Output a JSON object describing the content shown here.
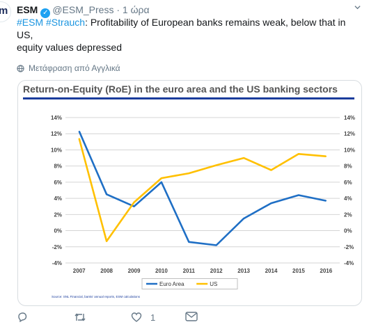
{
  "tweet": {
    "author_name": "ESM",
    "handle": "@ESM_Press",
    "separator": "·",
    "time": "1 ώρα",
    "hashtag1": "#ESM",
    "hashtag2": "#Strauch",
    "text_part1": ": Profitability of European banks remains weak, below that in US,",
    "text_part2": "equity values depressed",
    "translate_label": "Μετάφραση από Αγγλικά",
    "avatar_text": "m",
    "verified_mark": "✓"
  },
  "actions": {
    "reply_count": "",
    "retweet_count": "",
    "like_count": "1"
  },
  "chart_data": {
    "type": "line",
    "title": "Return-on-Equity (RoE) in the euro area and the US banking sectors",
    "x": [
      "2007",
      "2008",
      "2009",
      "2010",
      "2011",
      "2012",
      "2013",
      "2014",
      "2015",
      "2016"
    ],
    "series": [
      {
        "name": "Euro Area",
        "color": "#1f6fc5",
        "values": [
          12.3,
          4.5,
          3.0,
          6.0,
          -1.4,
          -1.8,
          1.5,
          3.4,
          4.4,
          3.7
        ]
      },
      {
        "name": "US",
        "color": "#ffc000",
        "values": [
          11.4,
          -1.3,
          3.5,
          6.5,
          7.1,
          8.1,
          9.0,
          7.5,
          9.5,
          9.2
        ]
      }
    ],
    "yticks": [
      "14%",
      "12%",
      "10%",
      "8%",
      "6%",
      "4%",
      "2%",
      "0%",
      "-2%",
      "-4%"
    ],
    "ylim": [
      -4,
      14
    ],
    "grid": true,
    "legend": "bottom",
    "source": "Source: SNL Financial, banks' annual reports, ESM calculations"
  }
}
